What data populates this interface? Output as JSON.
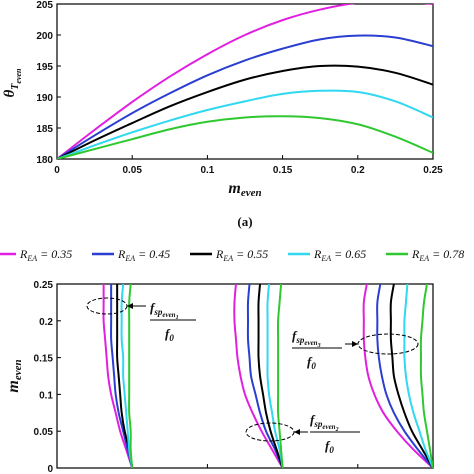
{
  "caption_a": "(a)",
  "legend": [
    {
      "label": "R_EA = 0.35",
      "color": "#e020e0"
    },
    {
      "label": "R_EA = 0.45",
      "color": "#2a3fd0"
    },
    {
      "label": "R_EA = 0.55",
      "color": "#000000"
    },
    {
      "label": "R_EA = 0.65",
      "color": "#30d8f0"
    },
    {
      "label": "R_EA = 0.78",
      "color": "#30c830"
    }
  ],
  "annotations": [
    {
      "text": "f_sp_even_1 / f_0"
    },
    {
      "text": "f_sp_even_3 / f_0"
    },
    {
      "text": "f_sp_even_2 / f_0"
    }
  ],
  "chart_data": [
    {
      "type": "line",
      "title": "",
      "xlabel": "m_even",
      "ylabel": "θ_T_even",
      "xlim": [
        0,
        0.25
      ],
      "ylim": [
        180,
        205
      ],
      "xticks": [
        "0",
        "0.05",
        "0.1",
        "0.15",
        "0.2",
        "0.25"
      ],
      "yticks": [
        "180",
        "185",
        "190",
        "195",
        "200",
        "205"
      ],
      "x": [
        0,
        0.025,
        0.05,
        0.075,
        0.1,
        0.125,
        0.15,
        0.175,
        0.2,
        0.225,
        0.25
      ],
      "series": [
        {
          "name": "R_EA = 0.35",
          "color": "#e020e0",
          "values": [
            180,
            184.7,
            189.2,
            193.3,
            196.9,
            200.0,
            202.4,
            204.1,
            205.2,
            205.5,
            205.0
          ]
        },
        {
          "name": "R_EA = 0.45",
          "color": "#2a3fd0",
          "values": [
            180,
            183.8,
            187.4,
            190.6,
            193.5,
            195.9,
            197.8,
            199.3,
            199.9,
            199.6,
            198.2
          ]
        },
        {
          "name": "R_EA = 0.55",
          "color": "#000000",
          "values": [
            180,
            183.0,
            185.8,
            188.5,
            190.8,
            192.8,
            194.2,
            195.0,
            194.9,
            193.9,
            192.0
          ]
        },
        {
          "name": "R_EA = 0.65",
          "color": "#30d8f0",
          "values": [
            180,
            182.2,
            184.3,
            186.2,
            187.9,
            189.3,
            190.5,
            191.0,
            190.8,
            189.3,
            186.7
          ]
        },
        {
          "name": "R_EA = 0.78",
          "color": "#30c830",
          "values": [
            180,
            181.6,
            183.2,
            184.8,
            186.0,
            186.7,
            186.9,
            186.6,
            185.6,
            183.6,
            181.0
          ]
        }
      ]
    },
    {
      "type": "line",
      "title": "",
      "xlabel": "",
      "ylabel": "m_even",
      "xlim": [
        1.5,
        4
      ],
      "ylim": [
        0,
        0.25
      ],
      "xticks": [
        "1.5",
        "2",
        "2.5",
        "3",
        "3.5",
        "4"
      ],
      "yticks": [
        "0",
        "0.05",
        "0.1",
        "0.15",
        "0.2",
        "0.25"
      ],
      "y": [
        0,
        0.025,
        0.05,
        0.075,
        0.1,
        0.125,
        0.15,
        0.175,
        0.2,
        0.225,
        0.25
      ],
      "series": [
        {
          "name": "R_EA = 0.35",
          "color": "#e020e0",
          "branches": [
            [
              2.0,
              1.96,
              1.92,
              1.89,
              1.86,
              1.84,
              1.83,
              1.82,
              1.81,
              1.81,
              1.81
            ],
            [
              3.0,
              2.93,
              2.86,
              2.8,
              2.75,
              2.72,
              2.7,
              2.69,
              2.68,
              2.68,
              2.69
            ],
            [
              4.0,
              3.87,
              3.76,
              3.67,
              3.61,
              3.57,
              3.55,
              3.54,
              3.54,
              3.54,
              3.56
            ]
          ]
        },
        {
          "name": "R_EA = 0.45",
          "color": "#2a3fd0",
          "branches": [
            [
              2.0,
              1.97,
              1.94,
              1.91,
              1.89,
              1.88,
              1.87,
              1.86,
              1.86,
              1.86,
              1.86
            ],
            [
              3.0,
              2.95,
              2.89,
              2.85,
              2.82,
              2.79,
              2.78,
              2.77,
              2.77,
              2.77,
              2.78
            ],
            [
              4.0,
              3.9,
              3.81,
              3.74,
              3.69,
              3.66,
              3.64,
              3.63,
              3.63,
              3.63,
              3.65
            ]
          ]
        },
        {
          "name": "R_EA = 0.55",
          "color": "#000000",
          "branches": [
            [
              2.0,
              1.98,
              1.95,
              1.93,
              1.92,
              1.91,
              1.9,
              1.9,
              1.9,
              1.9,
              1.9
            ],
            [
              3.0,
              2.96,
              2.92,
              2.89,
              2.87,
              2.85,
              2.84,
              2.84,
              2.84,
              2.84,
              2.85
            ],
            [
              4.0,
              3.93,
              3.86,
              3.81,
              3.77,
              3.74,
              3.73,
              3.72,
              3.72,
              3.72,
              3.74
            ]
          ]
        },
        {
          "name": "R_EA = 0.65",
          "color": "#30d8f0",
          "branches": [
            [
              2.0,
              1.98,
              1.97,
              1.96,
              1.95,
              1.94,
              1.94,
              1.93,
              1.93,
              1.93,
              1.94
            ],
            [
              3.0,
              2.98,
              2.95,
              2.93,
              2.91,
              2.9,
              2.9,
              2.9,
              2.9,
              2.9,
              2.91
            ],
            [
              4.0,
              3.95,
              3.91,
              3.87,
              3.84,
              3.82,
              3.81,
              3.81,
              3.81,
              3.82,
              3.83
            ]
          ]
        },
        {
          "name": "R_EA = 0.78",
          "color": "#30c830",
          "branches": [
            [
              2.0,
              1.99,
              1.99,
              1.98,
              1.98,
              1.98,
              1.98,
              1.98,
              1.98,
              1.98,
              1.99
            ],
            [
              3.0,
              2.99,
              2.98,
              2.97,
              2.97,
              2.97,
              2.97,
              2.97,
              2.97,
              2.98,
              2.99
            ],
            [
              4.0,
              3.98,
              3.96,
              3.94,
              3.93,
              3.92,
              3.92,
              3.92,
              3.93,
              3.94,
              3.96
            ]
          ]
        }
      ]
    }
  ]
}
